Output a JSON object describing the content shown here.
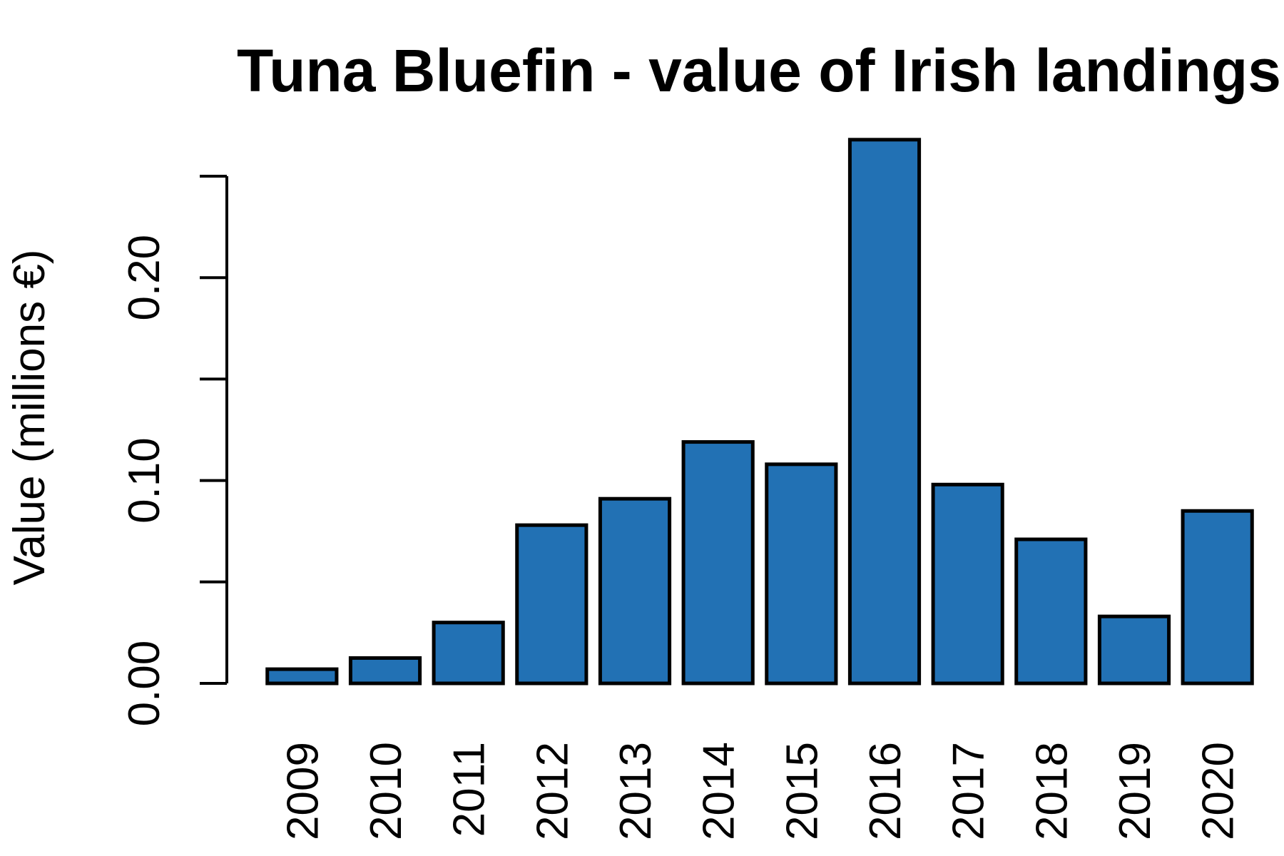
{
  "chart_data": {
    "type": "bar",
    "title": "Tuna Bluefin - value of Irish landings",
    "xlabel": "",
    "ylabel": "Value (millions €)",
    "categories": [
      "2009",
      "2010",
      "2011",
      "2012",
      "2013",
      "2014",
      "2015",
      "2016",
      "2017",
      "2018",
      "2019",
      "2020"
    ],
    "values": [
      0.007,
      0.0125,
      0.03,
      0.078,
      0.091,
      0.119,
      0.108,
      0.268,
      0.098,
      0.071,
      0.033,
      0.085
    ],
    "ylim": [
      0,
      0.25
    ],
    "y_ticks": [
      0,
      0.05,
      0.1,
      0.15,
      0.2,
      0.25
    ],
    "y_tick_labels": [
      "0.00",
      "",
      "0.10",
      "",
      "0.20",
      ""
    ],
    "bar_color": "#2271b4",
    "grid": false,
    "legend": "none"
  }
}
